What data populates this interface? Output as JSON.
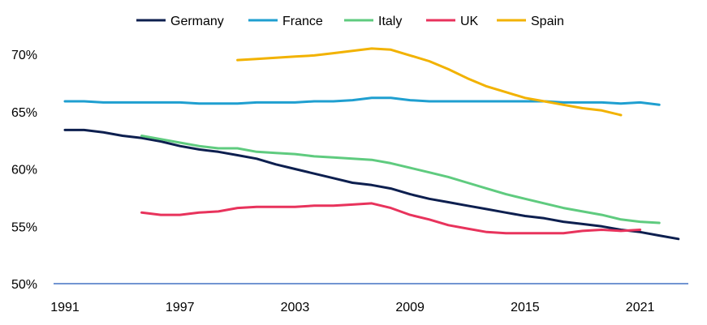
{
  "chart_data": {
    "type": "line",
    "title": "",
    "xlabel": "",
    "ylabel": "",
    "xlim": [
      1991,
      2023
    ],
    "ylim": [
      50,
      72
    ],
    "yticks": [
      50,
      55,
      60,
      65,
      70
    ],
    "ytick_labels": [
      "50%",
      "55%",
      "60%",
      "65%",
      "70%"
    ],
    "xticks": [
      1991,
      1997,
      2003,
      2009,
      2015,
      2021
    ],
    "xtick_labels": [
      "1991",
      "1997",
      "2003",
      "2009",
      "2015",
      "2021"
    ],
    "grid": false,
    "legend_position": "top",
    "series": [
      {
        "name": "Germany",
        "color": "#0d1f4f",
        "points": [
          [
            1991,
            63.4
          ],
          [
            1992,
            63.4
          ],
          [
            1993,
            63.2
          ],
          [
            1994,
            62.9
          ],
          [
            1995,
            62.7
          ],
          [
            1996,
            62.4
          ],
          [
            1997,
            62.0
          ],
          [
            1998,
            61.7
          ],
          [
            1999,
            61.5
          ],
          [
            2000,
            61.2
          ],
          [
            2001,
            60.9
          ],
          [
            2002,
            60.4
          ],
          [
            2003,
            60.0
          ],
          [
            2004,
            59.6
          ],
          [
            2005,
            59.2
          ],
          [
            2006,
            58.8
          ],
          [
            2007,
            58.6
          ],
          [
            2008,
            58.3
          ],
          [
            2009,
            57.8
          ],
          [
            2010,
            57.4
          ],
          [
            2011,
            57.1
          ],
          [
            2012,
            56.8
          ],
          [
            2013,
            56.5
          ],
          [
            2014,
            56.2
          ],
          [
            2015,
            55.9
          ],
          [
            2016,
            55.7
          ],
          [
            2017,
            55.4
          ],
          [
            2018,
            55.2
          ],
          [
            2019,
            55.0
          ],
          [
            2020,
            54.7
          ],
          [
            2021,
            54.5
          ],
          [
            2022,
            54.2
          ],
          [
            2023,
            53.9
          ]
        ]
      },
      {
        "name": "France",
        "color": "#1f9fd0",
        "points": [
          [
            1991,
            65.9
          ],
          [
            1992,
            65.9
          ],
          [
            1993,
            65.8
          ],
          [
            1994,
            65.8
          ],
          [
            1995,
            65.8
          ],
          [
            1996,
            65.8
          ],
          [
            1997,
            65.8
          ],
          [
            1998,
            65.7
          ],
          [
            1999,
            65.7
          ],
          [
            2000,
            65.7
          ],
          [
            2001,
            65.8
          ],
          [
            2002,
            65.8
          ],
          [
            2003,
            65.8
          ],
          [
            2004,
            65.9
          ],
          [
            2005,
            65.9
          ],
          [
            2006,
            66.0
          ],
          [
            2007,
            66.2
          ],
          [
            2008,
            66.2
          ],
          [
            2009,
            66.0
          ],
          [
            2010,
            65.9
          ],
          [
            2011,
            65.9
          ],
          [
            2012,
            65.9
          ],
          [
            2013,
            65.9
          ],
          [
            2014,
            65.9
          ],
          [
            2015,
            65.9
          ],
          [
            2016,
            65.9
          ],
          [
            2017,
            65.8
          ],
          [
            2018,
            65.8
          ],
          [
            2019,
            65.8
          ],
          [
            2020,
            65.7
          ],
          [
            2021,
            65.8
          ],
          [
            2022,
            65.6
          ]
        ]
      },
      {
        "name": "Italy",
        "color": "#5fcb7f",
        "points": [
          [
            1995,
            62.9
          ],
          [
            1996,
            62.6
          ],
          [
            1997,
            62.3
          ],
          [
            1998,
            62.0
          ],
          [
            1999,
            61.8
          ],
          [
            2000,
            61.8
          ],
          [
            2001,
            61.5
          ],
          [
            2002,
            61.4
          ],
          [
            2003,
            61.3
          ],
          [
            2004,
            61.1
          ],
          [
            2005,
            61.0
          ],
          [
            2006,
            60.9
          ],
          [
            2007,
            60.8
          ],
          [
            2008,
            60.5
          ],
          [
            2009,
            60.1
          ],
          [
            2010,
            59.7
          ],
          [
            2011,
            59.3
          ],
          [
            2012,
            58.8
          ],
          [
            2013,
            58.3
          ],
          [
            2014,
            57.8
          ],
          [
            2015,
            57.4
          ],
          [
            2016,
            57.0
          ],
          [
            2017,
            56.6
          ],
          [
            2018,
            56.3
          ],
          [
            2019,
            56.0
          ],
          [
            2020,
            55.6
          ],
          [
            2021,
            55.4
          ],
          [
            2022,
            55.3
          ]
        ]
      },
      {
        "name": "UK",
        "color": "#e8335c",
        "points": [
          [
            1995,
            56.2
          ],
          [
            1996,
            56.0
          ],
          [
            1997,
            56.0
          ],
          [
            1998,
            56.2
          ],
          [
            1999,
            56.3
          ],
          [
            2000,
            56.6
          ],
          [
            2001,
            56.7
          ],
          [
            2002,
            56.7
          ],
          [
            2003,
            56.7
          ],
          [
            2004,
            56.8
          ],
          [
            2005,
            56.8
          ],
          [
            2006,
            56.9
          ],
          [
            2007,
            57.0
          ],
          [
            2008,
            56.6
          ],
          [
            2009,
            56.0
          ],
          [
            2010,
            55.6
          ],
          [
            2011,
            55.1
          ],
          [
            2012,
            54.8
          ],
          [
            2013,
            54.5
          ],
          [
            2014,
            54.4
          ],
          [
            2015,
            54.4
          ],
          [
            2016,
            54.4
          ],
          [
            2017,
            54.4
          ],
          [
            2018,
            54.6
          ],
          [
            2019,
            54.7
          ],
          [
            2020,
            54.6
          ],
          [
            2021,
            54.7
          ]
        ]
      },
      {
        "name": "Spain",
        "color": "#f2b200",
        "points": [
          [
            2000,
            69.5
          ],
          [
            2001,
            69.6
          ],
          [
            2002,
            69.7
          ],
          [
            2003,
            69.8
          ],
          [
            2004,
            69.9
          ],
          [
            2005,
            70.1
          ],
          [
            2006,
            70.3
          ],
          [
            2007,
            70.5
          ],
          [
            2008,
            70.4
          ],
          [
            2009,
            69.9
          ],
          [
            2010,
            69.4
          ],
          [
            2011,
            68.7
          ],
          [
            2012,
            67.9
          ],
          [
            2013,
            67.2
          ],
          [
            2014,
            66.7
          ],
          [
            2015,
            66.2
          ],
          [
            2016,
            65.9
          ],
          [
            2017,
            65.6
          ],
          [
            2018,
            65.3
          ],
          [
            2019,
            65.1
          ],
          [
            2020,
            64.7
          ]
        ]
      }
    ],
    "axis_color": "#4472c4"
  }
}
